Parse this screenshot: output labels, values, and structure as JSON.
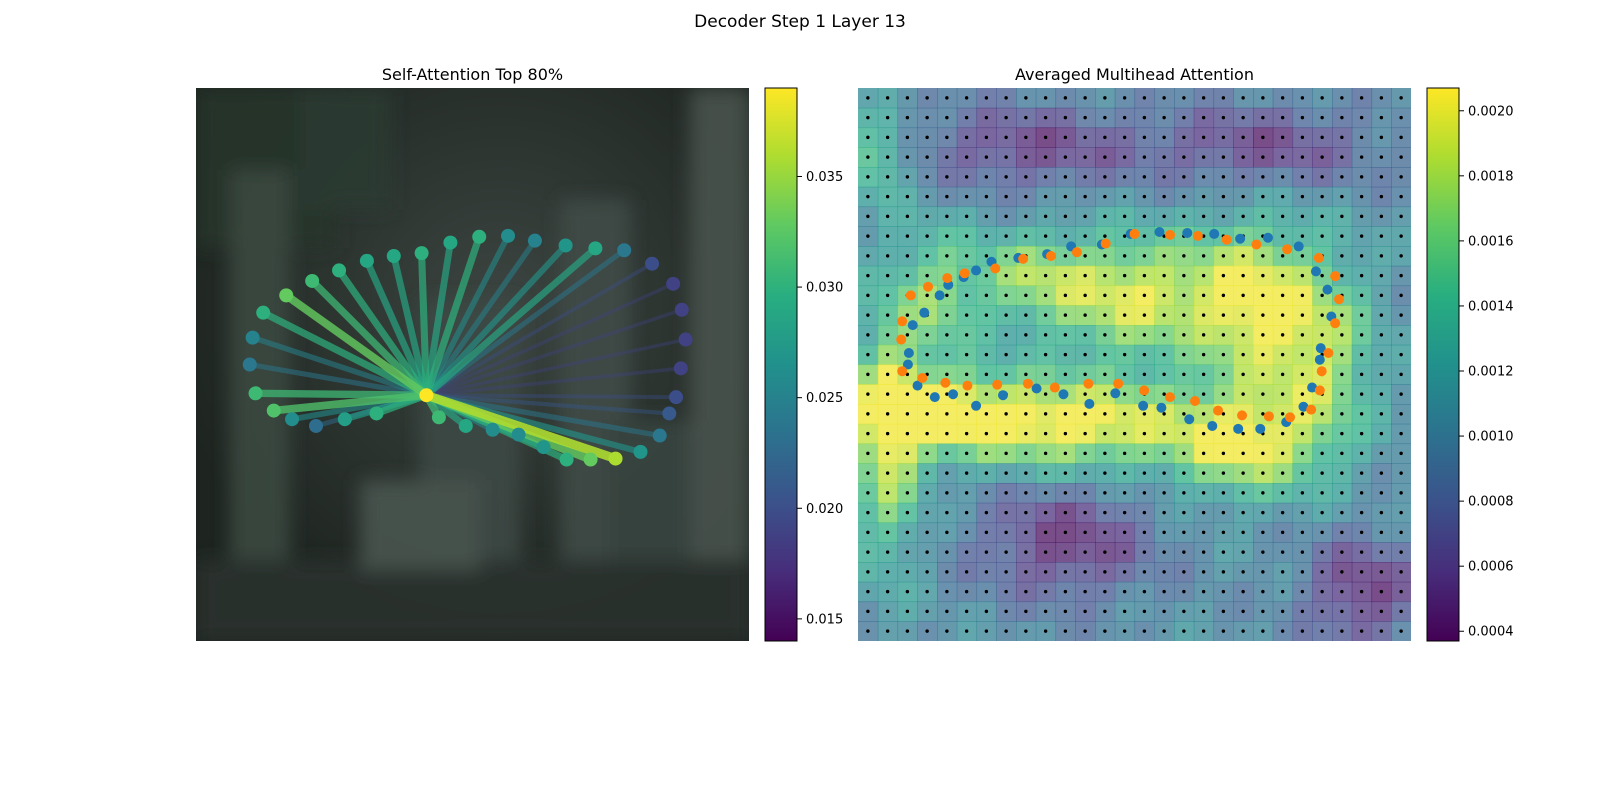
{
  "figure": {
    "suptitle": "Decoder Step 1 Layer 13"
  },
  "chart_data": [
    {
      "type": "scatter",
      "title": "Self-Attention Top 80%",
      "background": "blurred dark photograph",
      "query_point": [
        240,
        320
      ],
      "xlim": [
        0,
        576
      ],
      "ylim": [
        576,
        0
      ],
      "points": [
        {
          "x": 70,
          "y": 234,
          "w": 0.03
        },
        {
          "x": 94,
          "y": 216,
          "w": 0.033
        },
        {
          "x": 121,
          "y": 201,
          "w": 0.031
        },
        {
          "x": 149,
          "y": 190,
          "w": 0.03
        },
        {
          "x": 178,
          "y": 180,
          "w": 0.029
        },
        {
          "x": 206,
          "y": 175,
          "w": 0.029
        },
        {
          "x": 235,
          "y": 172,
          "w": 0.03
        },
        {
          "x": 265,
          "y": 161,
          "w": 0.029
        },
        {
          "x": 295,
          "y": 155,
          "w": 0.03
        },
        {
          "x": 325,
          "y": 154,
          "w": 0.026
        },
        {
          "x": 353,
          "y": 159,
          "w": 0.025
        },
        {
          "x": 385,
          "y": 164,
          "w": 0.027
        },
        {
          "x": 416,
          "y": 167,
          "w": 0.029
        },
        {
          "x": 446,
          "y": 169,
          "w": 0.024
        },
        {
          "x": 475,
          "y": 183,
          "w": 0.02
        },
        {
          "x": 497,
          "y": 204,
          "w": 0.019
        },
        {
          "x": 506,
          "y": 231,
          "w": 0.019
        },
        {
          "x": 510,
          "y": 262,
          "w": 0.019
        },
        {
          "x": 505,
          "y": 292,
          "w": 0.019
        },
        {
          "x": 500,
          "y": 322,
          "w": 0.02
        },
        {
          "x": 493,
          "y": 339,
          "w": 0.021
        },
        {
          "x": 483,
          "y": 362,
          "w": 0.024
        },
        {
          "x": 463,
          "y": 379,
          "w": 0.027
        },
        {
          "x": 437,
          "y": 386,
          "w": 0.036
        },
        {
          "x": 411,
          "y": 387,
          "w": 0.033
        },
        {
          "x": 386,
          "y": 387,
          "w": 0.03
        },
        {
          "x": 362,
          "y": 374,
          "w": 0.027
        },
        {
          "x": 336,
          "y": 361,
          "w": 0.026
        },
        {
          "x": 309,
          "y": 356,
          "w": 0.026
        },
        {
          "x": 281,
          "y": 352,
          "w": 0.029
        },
        {
          "x": 253,
          "y": 343,
          "w": 0.031
        },
        {
          "x": 188,
          "y": 339,
          "w": 0.03
        },
        {
          "x": 155,
          "y": 345,
          "w": 0.028
        },
        {
          "x": 125,
          "y": 352,
          "w": 0.023
        },
        {
          "x": 100,
          "y": 345,
          "w": 0.026
        },
        {
          "x": 81,
          "y": 336,
          "w": 0.032
        },
        {
          "x": 62,
          "y": 318,
          "w": 0.031
        },
        {
          "x": 56,
          "y": 288,
          "w": 0.024
        },
        {
          "x": 59,
          "y": 260,
          "w": 0.025
        }
      ],
      "colorbar": {
        "min": 0.014,
        "max": 0.039,
        "ticks": [
          "0.015",
          "0.020",
          "0.025",
          "0.030",
          "0.035"
        ],
        "tick_values": [
          0.015,
          0.02,
          0.025,
          0.03,
          0.035
        ],
        "colormap": "viridis"
      }
    },
    {
      "type": "heatmap",
      "title": "Averaged Multihead Attention",
      "grid": {
        "rows": 28,
        "cols": 28
      },
      "colorbar": {
        "min": 0.00037,
        "max": 0.00207,
        "ticks": [
          "0.0004",
          "0.0006",
          "0.0008",
          "0.0010",
          "0.0012",
          "0.0014",
          "0.0016",
          "0.0018",
          "0.0020"
        ],
        "tick_values": [
          0.0004,
          0.0006,
          0.0008,
          0.001,
          0.0012,
          0.0014,
          0.0016,
          0.0018,
          0.002
        ],
        "colormap": "viridis"
      },
      "series": [
        {
          "color": "#1f77b4",
          "points": [
            [
              53,
              276
            ],
            [
              57,
              247
            ],
            [
              69,
              234
            ],
            [
              85,
              216
            ],
            [
              94,
              205
            ],
            [
              110,
              197
            ],
            [
              123,
              190
            ],
            [
              139,
              181
            ],
            [
              167,
              177
            ],
            [
              197,
              173
            ],
            [
              222,
              165
            ],
            [
              254,
              163
            ],
            [
              284,
              152
            ],
            [
              314,
              150
            ],
            [
              343,
              151
            ],
            [
              371,
              152
            ],
            [
              398,
              157
            ],
            [
              427,
              156
            ],
            [
              459,
              165
            ],
            [
              477,
              191
            ],
            [
              489,
              210
            ],
            [
              493,
              238
            ],
            [
              482,
              271
            ],
            [
              481,
              283
            ],
            [
              473,
              312
            ],
            [
              464,
              332
            ],
            [
              446,
              348
            ],
            [
              419,
              355
            ],
            [
              396,
              355
            ],
            [
              369,
              352
            ],
            [
              345,
              345
            ],
            [
              316,
              333
            ],
            [
              297,
              331
            ],
            [
              268,
              318
            ],
            [
              241,
              329
            ],
            [
              214,
              319
            ],
            [
              186,
              313
            ],
            [
              151,
              320
            ],
            [
              123,
              331
            ],
            [
              99,
              319
            ],
            [
              80,
              322
            ],
            [
              62,
              310
            ],
            [
              52,
              288
            ]
          ]
        },
        {
          "color": "#ff7f0e",
          "points": [
            [
              45,
              262
            ],
            [
              46,
              243
            ],
            [
              55,
              216
            ],
            [
              73,
              207
            ],
            [
              93,
              198
            ],
            [
              111,
              193
            ],
            [
              143,
              188
            ],
            [
              172,
              178
            ],
            [
              201,
              175
            ],
            [
              228,
              171
            ],
            [
              258,
              162
            ],
            [
              288,
              152
            ],
            [
              325,
              153
            ],
            [
              354,
              154
            ],
            [
              384,
              158
            ],
            [
              415,
              163
            ],
            [
              447,
              168
            ],
            [
              480,
              177
            ],
            [
              497,
              196
            ],
            [
              501,
              220
            ],
            [
              497,
              245
            ],
            [
              490,
              276
            ],
            [
              483,
              295
            ],
            [
              481,
              315
            ],
            [
              472,
              335
            ],
            [
              450,
              343
            ],
            [
              428,
              342
            ],
            [
              400,
              341
            ],
            [
              375,
              336
            ],
            [
              351,
              326
            ],
            [
              325,
              322
            ],
            [
              298,
              315
            ],
            [
              271,
              308
            ],
            [
              240,
              308
            ],
            [
              205,
              312
            ],
            [
              177,
              308
            ],
            [
              145,
              309
            ],
            [
              114,
              310
            ],
            [
              91,
              307
            ],
            [
              67,
              302
            ],
            [
              46,
              295
            ]
          ]
        }
      ]
    }
  ]
}
